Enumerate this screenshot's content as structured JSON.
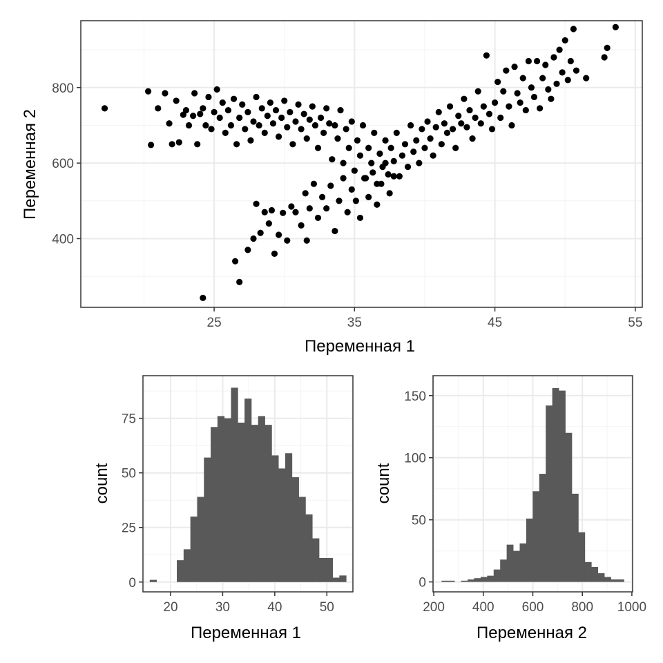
{
  "colors": {
    "point": "#000000",
    "bar": "#595959",
    "grid_major": "#ebebeb",
    "grid_minor": "#f4f4f4",
    "panel_border": "#333333",
    "tick_text": "#4d4d4d"
  },
  "chart_data": [
    {
      "type": "scatter",
      "xlabel": "Переменная 1",
      "ylabel": "Переменная 2",
      "xlim": [
        15.5,
        55.5
      ],
      "ylim": [
        218,
        977
      ],
      "xticks": [
        25,
        35,
        45,
        55
      ],
      "yticks": [
        400,
        600,
        800
      ],
      "grid": true,
      "points": [
        [
          17.2,
          745
        ],
        [
          20.3,
          790
        ],
        [
          20.5,
          648
        ],
        [
          21.0,
          745
        ],
        [
          21.5,
          785
        ],
        [
          21.8,
          705
        ],
        [
          22.0,
          650
        ],
        [
          22.3,
          765
        ],
        [
          22.5,
          655
        ],
        [
          22.8,
          728
        ],
        [
          23.0,
          740
        ],
        [
          23.2,
          700
        ],
        [
          23.5,
          725
        ],
        [
          23.6,
          785
        ],
        [
          23.8,
          650
        ],
        [
          24.0,
          730
        ],
        [
          24.2,
          745
        ],
        [
          24.4,
          700
        ],
        [
          24.6,
          775
        ],
        [
          24.8,
          690
        ],
        [
          25.0,
          735
        ],
        [
          25.2,
          795
        ],
        [
          25.4,
          720
        ],
        [
          25.6,
          760
        ],
        [
          25.8,
          680
        ],
        [
          26.0,
          740
        ],
        [
          26.2,
          700
        ],
        [
          26.4,
          770
        ],
        [
          26.6,
          650
        ],
        [
          26.8,
          720
        ],
        [
          27.0,
          755
        ],
        [
          27.2,
          690
        ],
        [
          27.4,
          735
        ],
        [
          27.6,
          660
        ],
        [
          27.8,
          710
        ],
        [
          28.0,
          775
        ],
        [
          28.2,
          700
        ],
        [
          28.4,
          745
        ],
        [
          28.6,
          680
        ],
        [
          28.8,
          725
        ],
        [
          29.0,
          760
        ],
        [
          29.2,
          705
        ],
        [
          29.4,
          740
        ],
        [
          29.6,
          670
        ],
        [
          29.8,
          720
        ],
        [
          30.0,
          765
        ],
        [
          30.2,
          695
        ],
        [
          30.4,
          735
        ],
        [
          30.6,
          650
        ],
        [
          30.8,
          710
        ],
        [
          31.0,
          755
        ],
        [
          31.2,
          690
        ],
        [
          31.4,
          730
        ],
        [
          31.6,
          665
        ],
        [
          31.8,
          715
        ],
        [
          32.0,
          750
        ],
        [
          32.2,
          700
        ],
        [
          32.4,
          640
        ],
        [
          32.6,
          720
        ],
        [
          32.8,
          680
        ],
        [
          33.0,
          745
        ],
        [
          33.2,
          705
        ],
        [
          33.4,
          610
        ],
        [
          33.6,
          700
        ],
        [
          33.8,
          665
        ],
        [
          34.0,
          740
        ],
        [
          34.2,
          600
        ],
        [
          34.4,
          690
        ],
        [
          34.6,
          640
        ],
        [
          34.8,
          710
        ],
        [
          35.0,
          580
        ],
        [
          35.2,
          660
        ],
        [
          35.4,
          620
        ],
        [
          35.6,
          700
        ],
        [
          35.8,
          560
        ],
        [
          36.0,
          640
        ],
        [
          36.2,
          600
        ],
        [
          36.4,
          680
        ],
        [
          36.6,
          545
        ],
        [
          36.8,
          625
        ],
        [
          37.0,
          590
        ],
        [
          37.2,
          660
        ],
        [
          37.4,
          570
        ],
        [
          37.6,
          640
        ],
        [
          37.8,
          605
        ],
        [
          38.0,
          680
        ],
        [
          38.2,
          565
        ],
        [
          38.4,
          620
        ],
        [
          38.6,
          650
        ],
        [
          38.8,
          590
        ],
        [
          39.0,
          700
        ],
        [
          39.2,
          630
        ],
        [
          39.4,
          660
        ],
        [
          39.6,
          600
        ],
        [
          39.8,
          690
        ],
        [
          40.0,
          640
        ],
        [
          40.2,
          710
        ],
        [
          40.4,
          665
        ],
        [
          40.6,
          620
        ],
        [
          40.8,
          695
        ],
        [
          41.0,
          735
        ],
        [
          41.2,
          650
        ],
        [
          41.4,
          705
        ],
        [
          41.6,
          680
        ],
        [
          41.8,
          750
        ],
        [
          42.0,
          690
        ],
        [
          42.2,
          640
        ],
        [
          42.4,
          725
        ],
        [
          42.6,
          705
        ],
        [
          42.8,
          770
        ],
        [
          43.0,
          695
        ],
        [
          43.2,
          740
        ],
        [
          43.4,
          665
        ],
        [
          43.6,
          720
        ],
        [
          43.8,
          790
        ],
        [
          44.0,
          705
        ],
        [
          44.2,
          750
        ],
        [
          44.4,
          885
        ],
        [
          44.6,
          730
        ],
        [
          44.8,
          690
        ],
        [
          45.0,
          760
        ],
        [
          45.2,
          815
        ],
        [
          45.4,
          720
        ],
        [
          45.6,
          790
        ],
        [
          45.8,
          845
        ],
        [
          46.0,
          750
        ],
        [
          46.2,
          700
        ],
        [
          46.4,
          855
        ],
        [
          46.6,
          785
        ],
        [
          46.8,
          760
        ],
        [
          47.0,
          825
        ],
        [
          47.2,
          740
        ],
        [
          47.4,
          870
        ],
        [
          47.6,
          800
        ],
        [
          47.8,
          775
        ],
        [
          48.0,
          870
        ],
        [
          48.2,
          745
        ],
        [
          48.4,
          825
        ],
        [
          48.6,
          860
        ],
        [
          48.8,
          795
        ],
        [
          49.0,
          770
        ],
        [
          49.2,
          880
        ],
        [
          49.4,
          810
        ],
        [
          49.6,
          900
        ],
        [
          49.8,
          840
        ],
        [
          50.0,
          925
        ],
        [
          50.2,
          820
        ],
        [
          50.4,
          870
        ],
        [
          50.6,
          955
        ],
        [
          50.8,
          845
        ],
        [
          51.5,
          825
        ],
        [
          52.8,
          880
        ],
        [
          53.0,
          905
        ],
        [
          53.6,
          960
        ],
        [
          24.2,
          243
        ],
        [
          26.5,
          340
        ],
        [
          26.8,
          285
        ],
        [
          27.4,
          370
        ],
        [
          27.8,
          400
        ],
        [
          28.0,
          492
        ],
        [
          28.3,
          415
        ],
        [
          28.6,
          470
        ],
        [
          28.9,
          440
        ],
        [
          29.1,
          475
        ],
        [
          29.3,
          360
        ],
        [
          29.6,
          410
        ],
        [
          29.9,
          468
        ],
        [
          30.2,
          395
        ],
        [
          30.5,
          485
        ],
        [
          30.8,
          470
        ],
        [
          31.2,
          435
        ],
        [
          31.5,
          520
        ],
        [
          31.6,
          395
        ],
        [
          31.8,
          480
        ],
        [
          32.1,
          545
        ],
        [
          32.4,
          455
        ],
        [
          32.7,
          510
        ],
        [
          33.0,
          480
        ],
        [
          33.3,
          540
        ],
        [
          33.6,
          420
        ],
        [
          33.9,
          500
        ],
        [
          34.2,
          560
        ],
        [
          34.5,
          470
        ],
        [
          34.8,
          530
        ],
        [
          35.1,
          500
        ],
        [
          35.4,
          455
        ],
        [
          35.7,
          560
        ],
        [
          36.0,
          510
        ],
        [
          36.3,
          575
        ],
        [
          36.6,
          490
        ],
        [
          36.9,
          545
        ],
        [
          37.2,
          600
        ],
        [
          37.5,
          520
        ],
        [
          37.8,
          565
        ]
      ]
    },
    {
      "type": "bar",
      "xlabel": "Переменная 1",
      "ylabel": "count",
      "xlim": [
        14.7,
        55.0
      ],
      "ylim": [
        -4.5,
        94.5
      ],
      "xticks": [
        20,
        30,
        40,
        50
      ],
      "yticks": [
        0,
        25,
        50,
        75
      ],
      "grid": true,
      "bin_edges": [
        16.0,
        17.3,
        18.6,
        19.9,
        21.2,
        22.5,
        23.8,
        25.1,
        26.4,
        27.7,
        29.0,
        30.3,
        31.6,
        32.9,
        34.2,
        35.5,
        36.8,
        38.1,
        39.4,
        40.7,
        42.0,
        43.3,
        44.6,
        45.9,
        47.2,
        48.5,
        49.8,
        51.1,
        52.4,
        53.7
      ],
      "values": [
        1,
        0,
        0,
        0,
        10,
        15,
        30,
        39,
        57,
        71,
        76,
        75,
        89,
        73,
        84,
        72,
        76,
        72,
        58,
        52,
        59,
        48,
        39,
        31,
        20,
        11,
        11,
        2,
        3
      ]
    },
    {
      "type": "bar",
      "xlabel": "Переменная 2",
      "ylabel": "count",
      "xlim": [
        197,
        1003
      ],
      "ylim": [
        -8,
        166
      ],
      "xticks": [
        200,
        400,
        600,
        800,
        1000
      ],
      "yticks": [
        0,
        50,
        100,
        150
      ],
      "grid": true,
      "bin_edges": [
        231.4,
        257.7,
        284.0,
        310.3,
        336.6,
        362.9,
        389.2,
        415.5,
        441.8,
        468.1,
        494.4,
        520.7,
        547.0,
        573.3,
        599.6,
        625.9,
        652.2,
        678.5,
        704.8,
        731.1,
        757.4,
        783.7,
        810.0,
        836.3,
        862.6,
        888.9,
        915.2,
        941.5,
        967.8
      ],
      "values": [
        1,
        1,
        0,
        1,
        2,
        3,
        4,
        5,
        10,
        18,
        30,
        25,
        31,
        51,
        73,
        87,
        142,
        156,
        154,
        120,
        71,
        40,
        16,
        12,
        7,
        4,
        2,
        2
      ]
    }
  ]
}
